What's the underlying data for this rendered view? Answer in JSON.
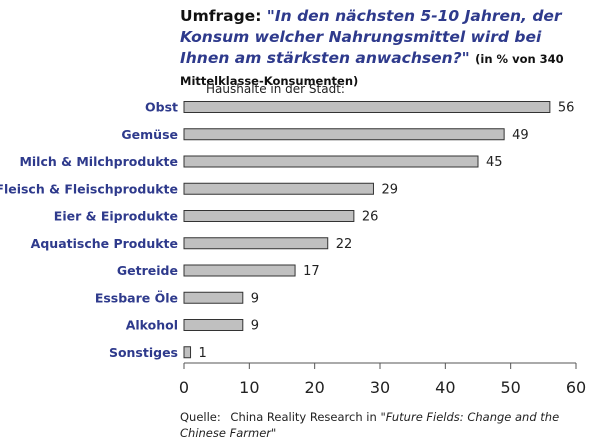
{
  "header": {
    "prefix": "Umfrage:",
    "question": "\"In den nächsten 5-10 Jahren, der Konsum welcher Nahrungsmittel wird bei Ihnen am stärksten anwachsen?\"",
    "note": "(in % von 340 Mittelklasse-Konsumenten)"
  },
  "source": {
    "label": "Quelle:",
    "text": "China Reality Research in",
    "title": "\"Future Fields: Change and the Chinese Farmer\""
  },
  "colors": {
    "bar_fill": "#c0c0c0",
    "bar_stroke": "#333333",
    "category_text": "#2e3a8c",
    "axis": "#555555"
  },
  "chart_data": {
    "type": "bar",
    "orientation": "horizontal",
    "subtitle": "Haushälte in der Stadt:",
    "categories": [
      "Obst",
      "Gemüse",
      "Milch & Milchprodukte",
      "Fleisch & Fleischprodukte",
      "Eier & Eiprodukte",
      "Aquatische Produkte",
      "Getreide",
      "Essbare Öle",
      "Alkohol",
      "Sonstiges"
    ],
    "values": [
      56,
      49,
      45,
      29,
      26,
      22,
      17,
      9,
      9,
      1
    ],
    "xlim": [
      0,
      60
    ],
    "xticks": [
      0,
      10,
      20,
      30,
      40,
      50,
      60
    ],
    "grid": false,
    "data_labels": true
  }
}
